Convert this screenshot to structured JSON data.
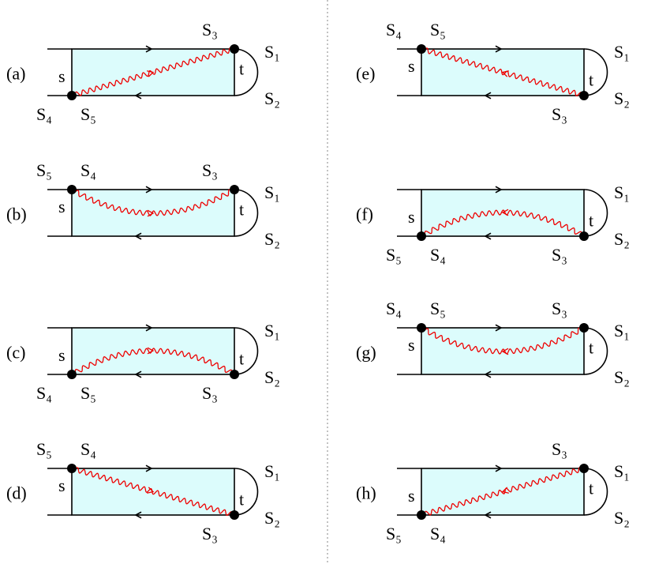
{
  "panels": [
    {
      "label": "(a)",
      "s": "s",
      "t": "t",
      "S1": "S₁",
      "S2": "S₂",
      "S3": "S₃",
      "left": "S₄",
      "right": "S₅"
    },
    {
      "label": "(b)",
      "s": "s",
      "t": "t",
      "S1": "S₁",
      "S2": "S₂",
      "S3": "S₃",
      "left": "S₅",
      "right": "S₄"
    },
    {
      "label": "(c)",
      "s": "s",
      "t": "t",
      "S1": "S₁",
      "S2": "S₂",
      "S3": "S₃",
      "left": "S₄",
      "right": "S₅"
    },
    {
      "label": "(d)",
      "s": "s",
      "t": "t",
      "S1": "S₁",
      "S2": "S₂",
      "S3": "S₃",
      "left": "S₅",
      "right": "S₄"
    },
    {
      "label": "(e)",
      "s": "s",
      "t": "t",
      "S1": "S₁",
      "S2": "S₂",
      "S3": "S₃",
      "left": "S₄",
      "right": "S₅"
    },
    {
      "label": "(f)",
      "s": "s",
      "t": "t",
      "S1": "S₁",
      "S2": "S₂",
      "S3": "S₃",
      "left": "S₅",
      "right": "S₄"
    },
    {
      "label": "(g)",
      "s": "s",
      "t": "t",
      "S1": "S₁",
      "S2": "S₂",
      "S3": "S₃",
      "left": "S₄",
      "right": "S₅"
    },
    {
      "label": "(h)",
      "s": "s",
      "t": "t",
      "S1": "S₁",
      "S2": "S₂",
      "S3": "S₃",
      "left": "S₅",
      "right": "S₄"
    }
  ]
}
